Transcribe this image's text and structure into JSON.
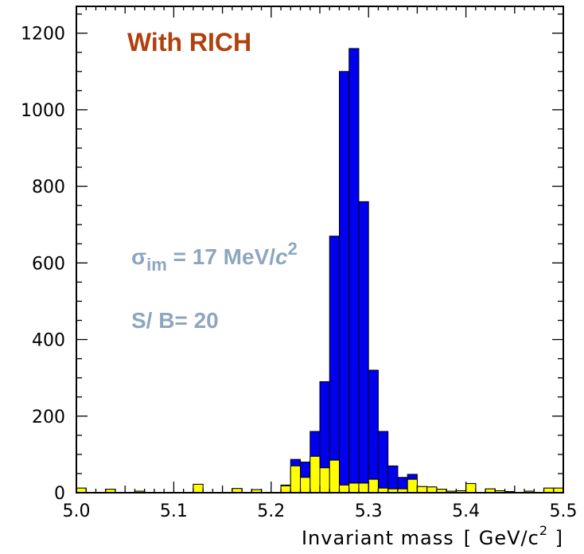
{
  "chart_data": {
    "type": "bar",
    "subtype": "stacked-histogram",
    "title": "With RICH",
    "xlabel": "Invariant mass",
    "xlabel_unit": "[ GeV/c",
    "xlabel_unit_sup": "2",
    "xlabel_unit_end": " ]",
    "ylabel": "",
    "xlim": [
      5.0,
      5.5
    ],
    "ylim": [
      0,
      1270
    ],
    "x_ticks": [
      "5.0",
      "5.1",
      "5.2",
      "5.3",
      "5.4",
      "5.5"
    ],
    "y_ticks": [
      "0",
      "200",
      "400",
      "600",
      "800",
      "1000",
      "1200"
    ],
    "bin_width": 0.01,
    "bin_start": 5.0,
    "series": [
      {
        "color": "#0000ee",
        "values": [
          12,
          0,
          0,
          9,
          0,
          0,
          4,
          0,
          0,
          0,
          0,
          0,
          22,
          0,
          0,
          0,
          11,
          0,
          8,
          0,
          0,
          20,
          87,
          80,
          160,
          290,
          670,
          1100,
          1160,
          760,
          320,
          160,
          70,
          40,
          48,
          16,
          15,
          9,
          4,
          5,
          24,
          0,
          10,
          5,
          3,
          0,
          4,
          0,
          12,
          12
        ]
      },
      {
        "color": "#ffff00",
        "values": [
          12,
          0,
          0,
          9,
          0,
          0,
          4,
          0,
          0,
          0,
          0,
          0,
          22,
          0,
          0,
          0,
          11,
          0,
          8,
          0,
          0,
          18,
          70,
          40,
          95,
          65,
          85,
          20,
          25,
          25,
          35,
          12,
          10,
          10,
          35,
          16,
          15,
          9,
          4,
          5,
          24,
          0,
          10,
          5,
          3,
          0,
          4,
          0,
          12,
          12
        ]
      }
    ],
    "annotations": {
      "resolution_sym": "σ",
      "resolution_sub": "im",
      "resolution_text": " = 17 MeV/",
      "resolution_unit": "c",
      "resolution_sup": "2",
      "signal_background": "S/ B= 20"
    },
    "grid": false
  }
}
